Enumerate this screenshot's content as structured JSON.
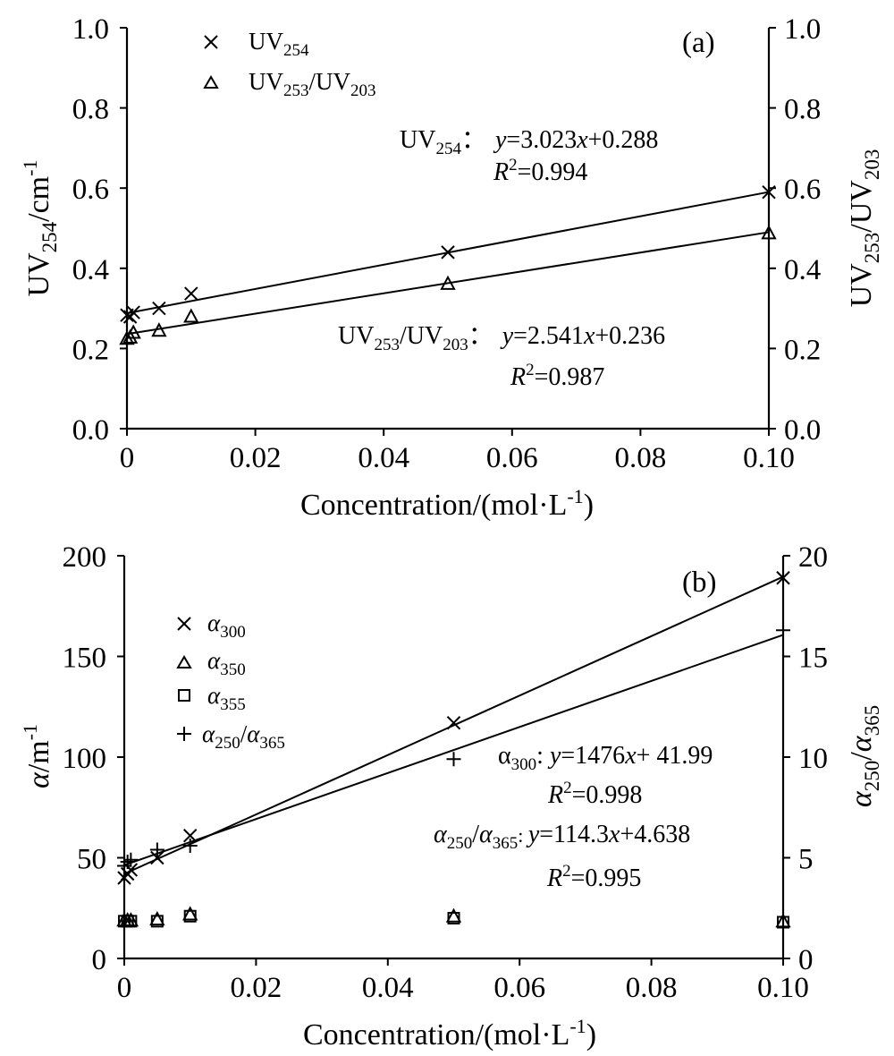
{
  "chart_data": [
    {
      "type": "scatter",
      "panel_label": "(a)",
      "xlabel": "Concentration/(mol·L⁻¹)",
      "ylabel": "UV₂₅₄/cm⁻¹",
      "y2label": "UV₂₅₃/UV₂₀₃",
      "xlim": [
        0,
        0.1
      ],
      "ylim": [
        0,
        1.0
      ],
      "y2lim": [
        0,
        1.0
      ],
      "x_ticks": [
        "0",
        "0.02",
        "0.04",
        "0.06",
        "0.08",
        "0.10"
      ],
      "y_ticks": [
        "0.0",
        "0.2",
        "0.4",
        "0.6",
        "0.8",
        "1.0"
      ],
      "y2_ticks": [
        "0.0",
        "0.2",
        "0.4",
        "0.6",
        "0.8",
        "1.0"
      ],
      "legend_position": "top-left",
      "grid": false,
      "series": [
        {
          "name": "UV₂₅₄",
          "marker": "x",
          "axis": "left",
          "x": [
            0,
            0.0005,
            0.001,
            0.005,
            0.01,
            0.05,
            0.1
          ],
          "y": [
            0.283,
            0.279,
            0.29,
            0.3,
            0.337,
            0.44,
            0.59
          ],
          "fit": {
            "slope": 3.023,
            "intercept": 0.288
          }
        },
        {
          "name": "UV₂₅₃/UV₂₀₃",
          "marker": "triangle",
          "axis": "right",
          "x": [
            0,
            0.0005,
            0.001,
            0.005,
            0.01,
            0.05,
            0.1
          ],
          "y": [
            0.225,
            0.228,
            0.24,
            0.245,
            0.28,
            0.362,
            0.488
          ],
          "fit": {
            "slope": 2.541,
            "intercept": 0.236
          }
        }
      ],
      "annotations": [
        {
          "label": "UV₂₅₄：",
          "eq": "y=3.023x+0.288",
          "r2": "R²=0.994"
        },
        {
          "label": "UV₂₅₃/UV₂₀₃：",
          "eq": "y=2.541x+0.236",
          "r2": "R²=0.987"
        }
      ]
    },
    {
      "type": "scatter",
      "panel_label": "(b)",
      "xlabel": "Concentration/(mol·L⁻¹)",
      "ylabel": "α/m⁻¹",
      "y2label": "α₂₅₀/α₃₆₅",
      "xlim": [
        0,
        0.1
      ],
      "ylim": [
        0,
        200
      ],
      "y2lim": [
        0,
        20
      ],
      "x_ticks": [
        "0",
        "0.02",
        "0.04",
        "0.06",
        "0.08",
        "0.10"
      ],
      "y_ticks": [
        "0",
        "50",
        "100",
        "150",
        "200"
      ],
      "y2_ticks": [
        "0",
        "5",
        "10",
        "15",
        "20"
      ],
      "legend_position": "top-left",
      "grid": false,
      "series": [
        {
          "name": "α₃₀₀",
          "marker": "x",
          "axis": "left",
          "x": [
            0,
            0.0005,
            0.001,
            0.005,
            0.01,
            0.05,
            0.1
          ],
          "y": [
            40,
            42,
            44,
            50,
            61,
            117,
            189
          ],
          "fit": {
            "slope": 1476,
            "intercept": 41.99
          }
        },
        {
          "name": "α₃₅₀",
          "marker": "triangle",
          "axis": "left",
          "x": [
            0,
            0.0005,
            0.001,
            0.005,
            0.01,
            0.05,
            0.1
          ],
          "y": [
            19,
            19,
            19,
            19.5,
            22,
            21,
            18.5
          ]
        },
        {
          "name": "α₃₅₅",
          "marker": "square",
          "axis": "left",
          "x": [
            0,
            0.0005,
            0.001,
            0.005,
            0.01,
            0.05,
            0.1
          ],
          "y": [
            18.5,
            18.5,
            18.5,
            18.5,
            21,
            20,
            18
          ]
        },
        {
          "name": "α₂₅₀/α₃₆₅",
          "marker": "plus",
          "axis": "right",
          "x": [
            0,
            0.0005,
            0.001,
            0.005,
            0.01,
            0.05,
            0.1
          ],
          "y": [
            4.6,
            4.8,
            4.9,
            5.4,
            5.6,
            9.9,
            16.3
          ],
          "fit": {
            "slope": 114.3,
            "intercept": 4.638
          }
        }
      ],
      "annotations": [
        {
          "label": "α₃₀₀: ",
          "eq": "y=1476x+ 41.99",
          "r2": "R²=0.998"
        },
        {
          "label": "α₂₅₀/α₃₆₅: ",
          "eq": "y=114.3x+4.638",
          "r2": "R²=0.995"
        }
      ]
    }
  ]
}
